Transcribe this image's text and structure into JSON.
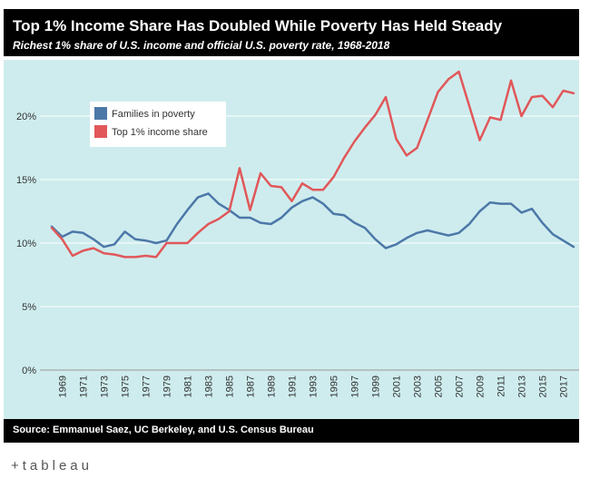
{
  "header": {
    "title": "Top 1% Income Share Has Doubled While Poverty Has Held Steady",
    "subtitle": "Richest 1% share of U.S. income and official U.S. poverty rate, 1968-2018"
  },
  "footer": {
    "source": "Source: Emmanuel Saez, UC Berkeley, and U.S. Census Bureau"
  },
  "branding": {
    "mark": "+",
    "word": "tableau",
    "icon": "tableau-logo-icon"
  },
  "colors": {
    "plot_background": "#ceecee",
    "poverty": "#4c78a8",
    "top1": "#e15759",
    "header_background": "#000000"
  },
  "chart_data": {
    "type": "line",
    "title": "Top 1% Income Share Has Doubled While Poverty Has Held Steady",
    "subtitle": "Richest 1% share of U.S. income and official U.S. poverty rate, 1968-2018",
    "xlabel": "",
    "ylabel": "",
    "x": [
      1968,
      1969,
      1970,
      1971,
      1972,
      1973,
      1974,
      1975,
      1976,
      1977,
      1978,
      1979,
      1980,
      1981,
      1982,
      1983,
      1984,
      1985,
      1986,
      1987,
      1988,
      1989,
      1990,
      1991,
      1992,
      1993,
      1994,
      1995,
      1996,
      1997,
      1998,
      1999,
      2000,
      2001,
      2002,
      2003,
      2004,
      2005,
      2006,
      2007,
      2008,
      2009,
      2010,
      2011,
      2012,
      2013,
      2014,
      2015,
      2016,
      2017,
      2018
    ],
    "x_tick_labels": [
      "1969",
      "1971",
      "1973",
      "1975",
      "1977",
      "1979",
      "1981",
      "1983",
      "1985",
      "1987",
      "1989",
      "1991",
      "1993",
      "1995",
      "1997",
      "1999",
      "2001",
      "2003",
      "2005",
      "2007",
      "2009",
      "2011",
      "2013",
      "2015",
      "2017"
    ],
    "y_ticks": [
      "0%",
      "5%",
      "10%",
      "15%",
      "20%"
    ],
    "ylim": [
      0,
      0.24
    ],
    "grid": true,
    "legend": "top-left",
    "series": [
      {
        "name": "Families in poverty",
        "color": "#4c78a8",
        "values": [
          0.113,
          0.105,
          0.109,
          0.108,
          0.103,
          0.097,
          0.099,
          0.109,
          0.103,
          0.102,
          0.1,
          0.102,
          0.115,
          0.126,
          0.136,
          0.139,
          0.131,
          0.126,
          0.12,
          0.12,
          0.116,
          0.115,
          0.12,
          0.128,
          0.133,
          0.136,
          0.131,
          0.123,
          0.122,
          0.116,
          0.112,
          0.103,
          0.096,
          0.099,
          0.104,
          0.108,
          0.11,
          0.108,
          0.106,
          0.108,
          0.115,
          0.125,
          0.132,
          0.131,
          0.131,
          0.124,
          0.127,
          0.116,
          0.107,
          0.102,
          0.097
        ]
      },
      {
        "name": "Top 1% income share",
        "color": "#e15759",
        "values": [
          0.112,
          0.103,
          0.09,
          0.094,
          0.096,
          0.092,
          0.091,
          0.089,
          0.089,
          0.09,
          0.089,
          0.1,
          0.1,
          0.1,
          0.108,
          0.115,
          0.119,
          0.125,
          0.159,
          0.126,
          0.155,
          0.145,
          0.144,
          0.133,
          0.147,
          0.142,
          0.142,
          0.152,
          0.167,
          0.18,
          0.191,
          0.201,
          0.215,
          0.182,
          0.169,
          0.175,
          0.197,
          0.219,
          0.229,
          0.235,
          0.208,
          0.181,
          0.199,
          0.197,
          0.228,
          0.2,
          0.215,
          0.216,
          0.207,
          0.22,
          0.218
        ]
      }
    ]
  }
}
